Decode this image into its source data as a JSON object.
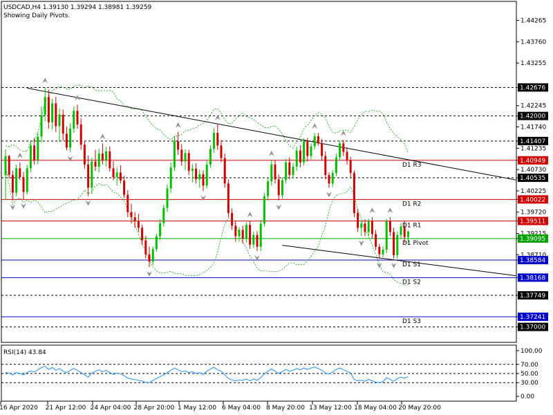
{
  "header": {
    "symbol_line": "USDCAD,H4  1.39130 1.39294 1.38981 1.39259",
    "pivots_note": "Showing Daily Pivots."
  },
  "rsi_panel": {
    "label": "RSI(14) 43.84"
  },
  "colors": {
    "bull": "#00c000",
    "bear": "#d00000",
    "resistance": "#d00000",
    "support": "#0000cc",
    "pivot": "#00a000",
    "band": "#00a000",
    "trendline": "#000000",
    "price_box": "#000000",
    "fractal": "#909090"
  },
  "chart_data": [
    {
      "type": "candlestick",
      "symbol": "USDCAD",
      "timeframe": "H4",
      "ylim": [
        1.3665,
        1.447
      ],
      "y_ticks": [
        {
          "value": 1.44265,
          "label": "1.44265"
        },
        {
          "value": 1.4376,
          "label": "1.43760"
        },
        {
          "value": 1.43255,
          "label": "1.43255"
        },
        {
          "value": 1.42676,
          "label": "1.42676",
          "boxed": true,
          "style": "black"
        },
        {
          "value": 1.42245,
          "label": "1.42245"
        },
        {
          "value": 1.42,
          "label": "1.42000",
          "boxed": true,
          "style": "black"
        },
        {
          "value": 1.4174,
          "label": "1.41740"
        },
        {
          "value": 1.41407,
          "label": "1.41407",
          "boxed": true,
          "style": "black"
        },
        {
          "value": 1.41235,
          "label": "1.41235"
        },
        {
          "value": 1.40949,
          "label": "1.40949",
          "boxed": true,
          "style": "red"
        },
        {
          "value": 1.4073,
          "label": "1.40730"
        },
        {
          "value": 1.40535,
          "label": "1.40535",
          "boxed": true,
          "style": "black"
        },
        {
          "value": 1.40225,
          "label": "1.40225"
        },
        {
          "value": 1.40022,
          "label": "1.40022",
          "boxed": true,
          "style": "red"
        },
        {
          "value": 1.3972,
          "label": "1.39720"
        },
        {
          "value": 1.39511,
          "label": "1.39511",
          "boxed": true,
          "style": "red"
        },
        {
          "value": 1.39215,
          "label": "1.39215"
        },
        {
          "value": 1.39095,
          "label": "1.39095",
          "boxed": true,
          "style": "green"
        },
        {
          "value": 1.3871,
          "label": "1.38710"
        },
        {
          "value": 1.38584,
          "label": "1.38584",
          "boxed": true,
          "style": "blue"
        },
        {
          "value": 1.38168,
          "label": "1.38168",
          "boxed": true,
          "style": "blue"
        },
        {
          "value": 1.37749,
          "label": "1.37749",
          "boxed": true,
          "style": "black"
        },
        {
          "value": 1.37241,
          "label": "1.37241",
          "boxed": true,
          "style": "blue"
        },
        {
          "value": 1.37,
          "label": "1.37000",
          "boxed": true,
          "style": "black"
        }
      ],
      "x_labels": [
        "16 Apr 2020",
        "21 Apr 12:00",
        "24 Apr 04:00",
        "28 Apr 20:00",
        "1 May 12:00",
        "6 May 04:00",
        "8 May 20:00",
        "13 May 12:00",
        "18 May 04:00",
        "20 May 20:00"
      ],
      "pivot_lines": [
        {
          "name": "D1 R3",
          "value": 1.40949,
          "color": "#d00000"
        },
        {
          "name": "D1 R2",
          "value": 1.40022,
          "color": "#d00000"
        },
        {
          "name": "D1 R1",
          "value": 1.39511,
          "color": "#d00000"
        },
        {
          "name": "D1 Pivot",
          "value": 1.39095,
          "color": "#00a000"
        },
        {
          "name": "D1 S1",
          "value": 1.38584,
          "color": "#0000cc"
        },
        {
          "name": "D1 S2",
          "value": 1.38168,
          "color": "#0000cc"
        },
        {
          "name": "D1 S3",
          "value": 1.37241,
          "color": "#0000cc"
        }
      ],
      "dashed_levels": [
        1.42676,
        1.42,
        1.41407,
        1.40535,
        1.37749,
        1.37
      ],
      "trendlines": [
        {
          "from": [
            6,
            1.4266
          ],
          "to": [
            146,
            1.4042
          ]
        },
        {
          "from": [
            77,
            1.38935
          ],
          "to": [
            146,
            1.38168
          ]
        }
      ],
      "ohlc": [
        [
          1.406,
          1.4121,
          1.4001,
          1.4105
        ],
        [
          1.4105,
          1.4108,
          1.4052,
          1.406
        ],
        [
          1.406,
          1.407,
          1.4,
          1.4018
        ],
        [
          1.4018,
          1.4085,
          1.401,
          1.4076
        ],
        [
          1.4076,
          1.409,
          1.4048,
          1.4055
        ],
        [
          1.4055,
          1.4067,
          1.4003,
          1.402
        ],
        [
          1.402,
          1.4084,
          1.4014,
          1.4076
        ],
        [
          1.4076,
          1.414,
          1.4066,
          1.413
        ],
        [
          1.413,
          1.4148,
          1.4085,
          1.4096
        ],
        [
          1.4096,
          1.416,
          1.4086,
          1.4151
        ],
        [
          1.4151,
          1.4222,
          1.4138,
          1.4202
        ],
        [
          1.4202,
          1.4268,
          1.4188,
          1.4245
        ],
        [
          1.4245,
          1.4262,
          1.417,
          1.4185
        ],
        [
          1.4185,
          1.4241,
          1.4168,
          1.423
        ],
        [
          1.423,
          1.4245,
          1.4162,
          1.4176
        ],
        [
          1.4176,
          1.4218,
          1.4139,
          1.4203
        ],
        [
          1.4203,
          1.4215,
          1.4142,
          1.4158
        ],
        [
          1.4158,
          1.4175,
          1.4118,
          1.4125
        ],
        [
          1.4125,
          1.4182,
          1.4115,
          1.417
        ],
        [
          1.417,
          1.4223,
          1.416,
          1.4212
        ],
        [
          1.4212,
          1.4227,
          1.417,
          1.418
        ],
        [
          1.418,
          1.4195,
          1.412,
          1.4132
        ],
        [
          1.4132,
          1.4141,
          1.4075,
          1.4085
        ],
        [
          1.4085,
          1.4106,
          1.401,
          1.403
        ],
        [
          1.403,
          1.4101,
          1.4015,
          1.4092
        ],
        [
          1.4092,
          1.412,
          1.407,
          1.408
        ],
        [
          1.408,
          1.4122,
          1.4066,
          1.4111
        ],
        [
          1.4111,
          1.4135,
          1.4085,
          1.4095
        ],
        [
          1.4095,
          1.4127,
          1.408,
          1.4116
        ],
        [
          1.4116,
          1.4128,
          1.4068,
          1.4076
        ],
        [
          1.4076,
          1.4093,
          1.4048,
          1.4055
        ],
        [
          1.4055,
          1.4078,
          1.4035,
          1.4066
        ],
        [
          1.4066,
          1.4083,
          1.404,
          1.4047
        ],
        [
          1.4047,
          1.4058,
          1.4005,
          1.4013
        ],
        [
          1.4013,
          1.4024,
          1.396,
          1.3972
        ],
        [
          1.3972,
          1.3992,
          1.3945,
          1.396
        ],
        [
          1.396,
          1.3972,
          1.3935,
          1.395
        ],
        [
          1.395,
          1.3968,
          1.3925,
          1.3935
        ],
        [
          1.3935,
          1.3942,
          1.3895,
          1.3905
        ],
        [
          1.3905,
          1.3916,
          1.3862,
          1.3872
        ],
        [
          1.3872,
          1.389,
          1.3842,
          1.3855
        ],
        [
          1.3855,
          1.3891,
          1.3847,
          1.3885
        ],
        [
          1.3885,
          1.3921,
          1.3878,
          1.3915
        ],
        [
          1.3915,
          1.3955,
          1.3905,
          1.3946
        ],
        [
          1.3946,
          1.399,
          1.3938,
          1.3982
        ],
        [
          1.3982,
          1.4038,
          1.3972,
          1.4028
        ],
        [
          1.4028,
          1.409,
          1.4018,
          1.4078
        ],
        [
          1.4078,
          1.4152,
          1.407,
          1.414
        ],
        [
          1.414,
          1.4162,
          1.4108,
          1.412
        ],
        [
          1.412,
          1.4133,
          1.4082,
          1.4092
        ],
        [
          1.4092,
          1.4121,
          1.4072,
          1.4112
        ],
        [
          1.4112,
          1.412,
          1.406,
          1.407
        ],
        [
          1.407,
          1.4086,
          1.4042,
          1.4075
        ],
        [
          1.4075,
          1.4088,
          1.404,
          1.405
        ],
        [
          1.405,
          1.4073,
          1.403,
          1.4062
        ],
        [
          1.4062,
          1.4071,
          1.4022,
          1.4035
        ],
        [
          1.4035,
          1.4093,
          1.4028,
          1.4085
        ],
        [
          1.4085,
          1.4131,
          1.4077,
          1.4122
        ],
        [
          1.4122,
          1.4171,
          1.4112,
          1.416
        ],
        [
          1.416,
          1.418,
          1.412,
          1.413
        ],
        [
          1.413,
          1.4143,
          1.409,
          1.41
        ],
        [
          1.41,
          1.4111,
          1.403,
          1.404
        ],
        [
          1.404,
          1.405,
          1.396,
          1.397
        ],
        [
          1.397,
          1.3981,
          1.393,
          1.394
        ],
        [
          1.394,
          1.395,
          1.3902,
          1.3915
        ],
        [
          1.3915,
          1.3937,
          1.3902,
          1.393
        ],
        [
          1.393,
          1.394,
          1.3898,
          1.391
        ],
        [
          1.391,
          1.3948,
          1.39,
          1.3942
        ],
        [
          1.3942,
          1.395,
          1.3885,
          1.3895
        ],
        [
          1.3895,
          1.3926,
          1.3887,
          1.3918
        ],
        [
          1.3918,
          1.3927,
          1.388,
          1.389
        ],
        [
          1.389,
          1.3953,
          1.388,
          1.3945
        ],
        [
          1.3945,
          1.4018,
          1.3938,
          1.401
        ],
        [
          1.401,
          1.4052,
          1.4,
          1.4045
        ],
        [
          1.4045,
          1.4095,
          1.4035,
          1.4085
        ],
        [
          1.4085,
          1.4095,
          1.404,
          1.405
        ],
        [
          1.405,
          1.4061,
          1.4,
          1.4012
        ],
        [
          1.4012,
          1.4055,
          1.4004,
          1.4048
        ],
        [
          1.4048,
          1.4098,
          1.404,
          1.409
        ],
        [
          1.409,
          1.4102,
          1.405,
          1.406
        ],
        [
          1.406,
          1.4089,
          1.4052,
          1.408
        ],
        [
          1.408,
          1.4127,
          1.407,
          1.4118
        ],
        [
          1.4118,
          1.4131,
          1.4078,
          1.409
        ],
        [
          1.409,
          1.4147,
          1.4082,
          1.414
        ],
        [
          1.414,
          1.4148,
          1.4092,
          1.4105
        ],
        [
          1.4105,
          1.4135,
          1.4097,
          1.4128
        ],
        [
          1.4128,
          1.416,
          1.412,
          1.4152
        ],
        [
          1.4152,
          1.416,
          1.413,
          1.4135
        ],
        [
          1.4135,
          1.4146,
          1.4095,
          1.4105
        ],
        [
          1.4105,
          1.4116,
          1.405,
          1.406
        ],
        [
          1.406,
          1.4066,
          1.403,
          1.404
        ],
        [
          1.404,
          1.4072,
          1.4032,
          1.4065
        ],
        [
          1.4065,
          1.4111,
          1.4057,
          1.4102
        ],
        [
          1.4102,
          1.4141,
          1.4095,
          1.4135
        ],
        [
          1.4135,
          1.4143,
          1.4105,
          1.4115
        ],
        [
          1.4115,
          1.4125,
          1.4085,
          1.4095
        ],
        [
          1.4095,
          1.4103,
          1.4055,
          1.4065
        ],
        [
          1.4065,
          1.4071,
          1.396,
          1.397
        ],
        [
          1.397,
          1.398,
          1.3925,
          1.3935
        ],
        [
          1.3935,
          1.3952,
          1.3915,
          1.3945
        ],
        [
          1.3945,
          1.3955,
          1.3915,
          1.3925
        ],
        [
          1.3925,
          1.3957,
          1.3915,
          1.395
        ],
        [
          1.395,
          1.396,
          1.391,
          1.392
        ],
        [
          1.392,
          1.393,
          1.3882,
          1.389
        ],
        [
          1.389,
          1.3896,
          1.3862,
          1.3872
        ],
        [
          1.3872,
          1.3891,
          1.3865,
          1.3883
        ],
        [
          1.3883,
          1.3956,
          1.3875,
          1.395
        ],
        [
          1.395,
          1.396,
          1.3915,
          1.3925
        ],
        [
          1.3925,
          1.3935,
          1.3862,
          1.387
        ],
        [
          1.387,
          1.3926,
          1.3862,
          1.3918
        ],
        [
          1.3918,
          1.3946,
          1.391,
          1.3938
        ],
        [
          1.3938,
          1.395,
          1.3898,
          1.3913
        ],
        [
          1.3913,
          1.3929,
          1.3898,
          1.3926
        ]
      ]
    },
    {
      "type": "line",
      "name": "RSI(14)",
      "ylim": [
        0,
        100
      ],
      "y_ticks": [
        100.0,
        70.0,
        50.0,
        30.0,
        0.0
      ],
      "y_tick_labels": [
        "100.00",
        "70.00",
        "50.00",
        "30.00",
        "0.00"
      ],
      "levels": [
        70,
        50,
        30
      ],
      "values": [
        52,
        51,
        47,
        52,
        50,
        47,
        52,
        56,
        53,
        58,
        63,
        66,
        59,
        63,
        57,
        61,
        55,
        52,
        57,
        61,
        57,
        52,
        47,
        42,
        51,
        55,
        58,
        54,
        57,
        52,
        48,
        51,
        49,
        45,
        40,
        38,
        37,
        35,
        33,
        31,
        30,
        35,
        39,
        43,
        47,
        52,
        57,
        62,
        58,
        54,
        56,
        52,
        54,
        50,
        52,
        48,
        55,
        60,
        64,
        58,
        55,
        47,
        39,
        36,
        34,
        36,
        35,
        38,
        34,
        38,
        35,
        41,
        49,
        55,
        60,
        55,
        50,
        54,
        59,
        55,
        57,
        61,
        58,
        62,
        59,
        62,
        64,
        61,
        57,
        51,
        49,
        53,
        59,
        62,
        58,
        55,
        51,
        37,
        34,
        35,
        33,
        37,
        34,
        31,
        30,
        32,
        41,
        37,
        33,
        39,
        42,
        40,
        43
      ]
    }
  ]
}
